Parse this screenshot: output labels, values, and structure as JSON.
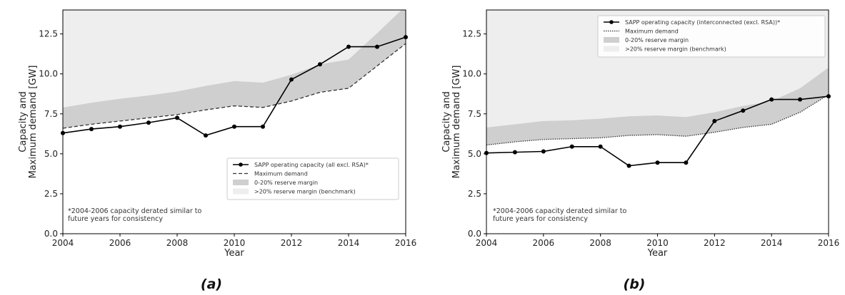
{
  "chart_data": [
    {
      "type": "line",
      "panel_label": "(a)",
      "xlabel": "Year",
      "ylabel": [
        "Capacity and",
        "Maximum demand [GW]"
      ],
      "xlim": [
        2004,
        2016
      ],
      "ylim": [
        0,
        14
      ],
      "x_ticks": [
        2004,
        2006,
        2008,
        2010,
        2012,
        2014,
        2016
      ],
      "y_ticks": [
        "0.0",
        "2.5",
        "5.0",
        "7.5",
        "10.0",
        "12.5"
      ],
      "x": [
        2004,
        2005,
        2006,
        2007,
        2008,
        2009,
        2010,
        2011,
        2012,
        2013,
        2014,
        2015,
        2016
      ],
      "series": [
        {
          "name": "SAPP operating capacity (all excl. RSA)*",
          "style": "line-marker",
          "values": [
            6.3,
            6.55,
            6.7,
            6.95,
            7.25,
            6.15,
            6.7,
            6.7,
            9.65,
            10.6,
            11.7,
            11.7,
            12.3
          ]
        },
        {
          "name": "Maximum demand",
          "style": "dashed",
          "values": [
            6.6,
            6.85,
            7.05,
            7.25,
            7.45,
            7.75,
            8.0,
            7.9,
            8.3,
            8.85,
            9.1,
            10.5,
            11.9
          ]
        },
        {
          "name": "0-20% reserve margin",
          "style": "band",
          "values": [
            7.9,
            8.2,
            8.45,
            8.65,
            8.9,
            9.25,
            9.55,
            9.45,
            9.95,
            10.6,
            10.9,
            12.55,
            14.25
          ]
        },
        {
          "name": ">20% reserve margin (benchmark)",
          "style": "fill-to-top"
        }
      ],
      "legend_position": "lower-right",
      "note": [
        "*2004-2006 capacity derated similar to",
        "future years for consistency"
      ],
      "colors": {
        "capacity": "#000000",
        "demand": "#333333",
        "band": "#cfcfcf",
        "benchmark": "#eeeeee"
      }
    },
    {
      "type": "line",
      "panel_label": "(b)",
      "xlabel": "Year",
      "ylabel": [
        "Capacity and",
        "Maximum demand [GW]"
      ],
      "xlim": [
        2004,
        2016
      ],
      "ylim": [
        0,
        14
      ],
      "x_ticks": [
        2004,
        2006,
        2008,
        2010,
        2012,
        2014,
        2016
      ],
      "y_ticks": [
        "0.0",
        "2.5",
        "5.0",
        "7.5",
        "10.0",
        "12.5"
      ],
      "x": [
        2004,
        2005,
        2006,
        2007,
        2008,
        2009,
        2010,
        2011,
        2012,
        2013,
        2014,
        2015,
        2016
      ],
      "series": [
        {
          "name": "SAPP operating capacity (interconnected (excl. RSA))*",
          "style": "line-marker",
          "values": [
            5.05,
            5.1,
            5.15,
            5.45,
            5.45,
            4.25,
            4.45,
            4.45,
            7.05,
            7.7,
            8.4,
            8.4,
            8.6
          ]
        },
        {
          "name": "Maximum demand",
          "style": "dotted",
          "values": [
            5.55,
            5.75,
            5.9,
            5.95,
            6.0,
            6.15,
            6.2,
            6.1,
            6.35,
            6.65,
            6.85,
            7.6,
            8.7
          ]
        },
        {
          "name": "0-20% reserve margin",
          "style": "band",
          "values": [
            6.65,
            6.85,
            7.05,
            7.1,
            7.2,
            7.35,
            7.4,
            7.3,
            7.6,
            8.0,
            8.3,
            9.1,
            10.4
          ]
        },
        {
          "name": ">20% reserve margin (benchmark)",
          "style": "fill-to-top"
        }
      ],
      "legend_position": "upper-right",
      "note": [
        "*2004-2006 capacity derated similar to",
        "future years for consistency"
      ],
      "colors": {
        "capacity": "#000000",
        "demand": "#333333",
        "band": "#cfcfcf",
        "benchmark": "#eeeeee"
      }
    }
  ]
}
